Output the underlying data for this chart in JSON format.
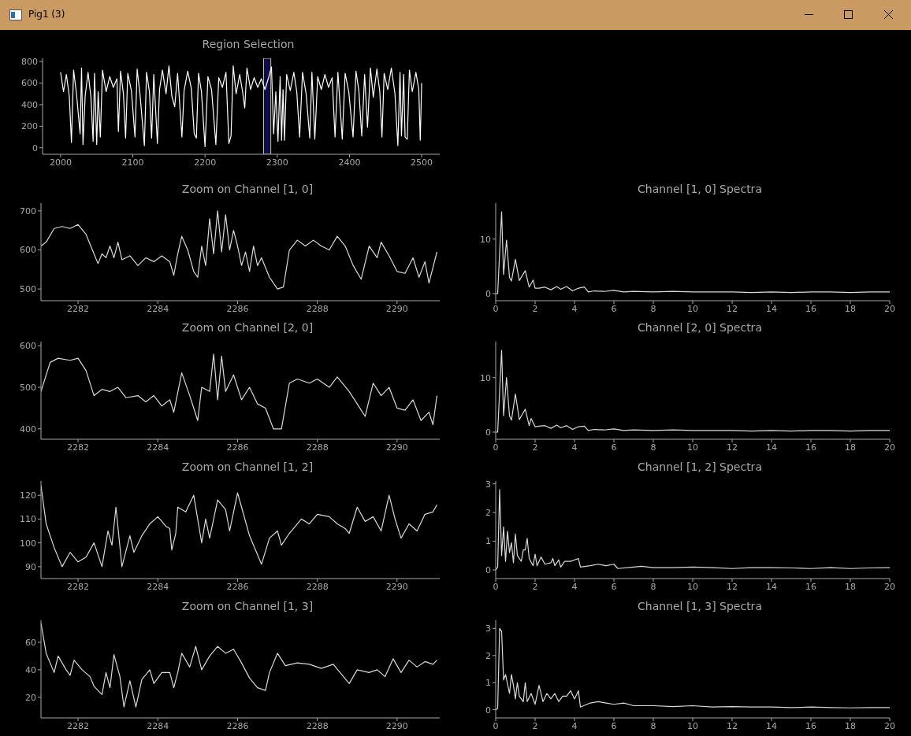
{
  "chart_data": [
    {
      "type": "line",
      "title": "Region Selection",
      "annotations": [
        "Pig1 (3)"
      ],
      "color": "#ffffff",
      "xlim": [
        1975,
        2525
      ],
      "xticks": [
        2000,
        2100,
        2200,
        2300,
        2400,
        2500
      ],
      "ylim": [
        -60,
        830
      ],
      "yticks": [
        0,
        200,
        400,
        600,
        800
      ],
      "bands": [
        {
          "axis": "x",
          "from": 2281.07,
          "to": 2291.07,
          "color": "#0c0c50"
        }
      ],
      "x": [
        2000,
        2004,
        2008,
        2012,
        2015,
        2018,
        2022,
        2027,
        2029,
        2031,
        2034,
        2038,
        2042,
        2045,
        2047,
        2050,
        2052,
        2055,
        2058,
        2063,
        2068,
        2073,
        2078,
        2080,
        2083,
        2087,
        2090,
        2093,
        2098,
        2103,
        2106,
        2110,
        2116,
        2119,
        2123,
        2126,
        2129,
        2134,
        2137,
        2141,
        2146,
        2150,
        2154,
        2158,
        2162,
        2168,
        2171,
        2176,
        2181,
        2185,
        2188,
        2191,
        2195,
        2200,
        2204,
        2209,
        2215,
        2219,
        2224,
        2229,
        2233,
        2236,
        2239,
        2243,
        2248,
        2252,
        2255,
        2258,
        2263,
        2268,
        2273,
        2278,
        2283,
        2288,
        2292,
        2295,
        2298,
        2301,
        2304,
        2306,
        2308,
        2310,
        2313,
        2318,
        2323,
        2327,
        2331,
        2335,
        2340,
        2345,
        2348,
        2352,
        2356,
        2361,
        2366,
        2371,
        2376,
        2380,
        2384,
        2390,
        2394,
        2399,
        2405,
        2409,
        2413,
        2417,
        2421,
        2425,
        2429,
        2433,
        2438,
        2442,
        2445,
        2448,
        2453,
        2458,
        2463,
        2467,
        2470,
        2472,
        2475,
        2477,
        2480,
        2483,
        2487,
        2492,
        2496,
        2498,
        2500
      ],
      "values": [
        700,
        520,
        680,
        480,
        50,
        720,
        500,
        130,
        740,
        30,
        480,
        700,
        470,
        60,
        690,
        30,
        520,
        100,
        720,
        520,
        660,
        560,
        640,
        150,
        710,
        500,
        90,
        690,
        530,
        100,
        730,
        490,
        20,
        700,
        520,
        90,
        680,
        40,
        540,
        720,
        500,
        760,
        480,
        380,
        690,
        100,
        530,
        710,
        550,
        130,
        90,
        690,
        520,
        10,
        660,
        540,
        30,
        650,
        560,
        700,
        40,
        110,
        760,
        500,
        680,
        520,
        370,
        740,
        540,
        650,
        560,
        640,
        540,
        650,
        750,
        130,
        520,
        60,
        660,
        70,
        540,
        70,
        680,
        530,
        700,
        520,
        100,
        700,
        500,
        90,
        700,
        80,
        660,
        540,
        680,
        560,
        650,
        100,
        700,
        80,
        690,
        520,
        100,
        710,
        530,
        110,
        680,
        190,
        740,
        470,
        730,
        520,
        100,
        690,
        540,
        740,
        500,
        20,
        700,
        110,
        680,
        100,
        80,
        720,
        520,
        700,
        540,
        70,
        600
      ]
    },
    {
      "type": "line",
      "title": "Zoom on Channel [1, 0]",
      "color": "#d9d9d9",
      "xlim": [
        2281.07,
        2291.07
      ],
      "xticks": [
        2282,
        2284,
        2286,
        2288,
        2290
      ],
      "ylim": [
        470,
        720
      ],
      "yticks": [
        500,
        600,
        700
      ],
      "x": [
        2281.07,
        2281.2,
        2281.4,
        2281.6,
        2281.8,
        2282.0,
        2282.2,
        2282.4,
        2282.5,
        2282.6,
        2282.7,
        2282.8,
        2282.9,
        2283.0,
        2283.1,
        2283.3,
        2283.5,
        2283.7,
        2283.9,
        2284.1,
        2284.3,
        2284.4,
        2284.5,
        2284.6,
        2284.75,
        2284.9,
        2285.0,
        2285.1,
        2285.2,
        2285.3,
        2285.4,
        2285.5,
        2285.6,
        2285.7,
        2285.8,
        2285.9,
        2286.0,
        2286.1,
        2286.2,
        2286.3,
        2286.4,
        2286.5,
        2286.6,
        2286.8,
        2287.0,
        2287.15,
        2287.3,
        2287.5,
        2287.7,
        2287.9,
        2288.1,
        2288.3,
        2288.5,
        2288.7,
        2288.9,
        2289.1,
        2289.3,
        2289.5,
        2289.6,
        2289.8,
        2290.0,
        2290.2,
        2290.4,
        2290.55,
        2290.7,
        2290.8,
        2291.0
      ],
      "values": [
        610,
        620,
        655,
        660,
        655,
        665,
        640,
        590,
        565,
        590,
        580,
        610,
        580,
        620,
        575,
        585,
        560,
        580,
        570,
        585,
        570,
        535,
        590,
        635,
        600,
        545,
        530,
        610,
        560,
        680,
        590,
        700,
        595,
        690,
        600,
        650,
        610,
        560,
        595,
        545,
        610,
        560,
        580,
        530,
        500,
        505,
        600,
        625,
        610,
        625,
        610,
        600,
        635,
        610,
        560,
        525,
        610,
        580,
        620,
        585,
        545,
        540,
        580,
        530,
        570,
        515,
        595
      ]
    },
    {
      "type": "line",
      "title": "Channel [1, 0] Spectra",
      "color": "#d9d9d9",
      "xlim": [
        0,
        20
      ],
      "xticks": [
        0,
        2,
        4,
        6,
        8,
        10,
        12,
        14,
        16,
        18,
        20
      ],
      "ylim": [
        -1.3,
        16.6
      ],
      "yticks": [
        0,
        10
      ],
      "x": [
        0,
        0.1,
        0.3,
        0.4,
        0.55,
        0.7,
        0.8,
        1.0,
        1.2,
        1.5,
        1.7,
        1.9,
        2.0,
        2.2,
        2.5,
        2.8,
        3.1,
        3.3,
        3.6,
        3.9,
        4.2,
        4.5,
        4.7,
        5,
        5.5,
        6,
        6.5,
        7,
        8,
        9,
        10,
        11,
        12,
        13,
        14,
        15,
        16,
        17,
        18,
        19,
        20
      ],
      "values": [
        0,
        0,
        15,
        3.5,
        9.8,
        3,
        2.3,
        6.3,
        2.4,
        4.2,
        1.2,
        2.5,
        1.0,
        1.0,
        1.2,
        0.7,
        1.3,
        0.8,
        1.3,
        0.5,
        1.0,
        1.2,
        0.3,
        0.5,
        0.4,
        0.6,
        0.3,
        0.4,
        0.3,
        0.4,
        0.3,
        0.3,
        0.3,
        0.2,
        0.3,
        0.2,
        0.3,
        0.3,
        0.2,
        0.3,
        0.3
      ]
    },
    {
      "type": "line",
      "title": "Zoom on Channel [2, 0]",
      "color": "#d9d9d9",
      "xlim": [
        2281.07,
        2291.07
      ],
      "xticks": [
        2282,
        2284,
        2286,
        2288,
        2290
      ],
      "ylim": [
        375,
        610
      ],
      "yticks": [
        400,
        500,
        600
      ],
      "x": [
        2281.07,
        2281.3,
        2281.5,
        2281.8,
        2282.0,
        2282.2,
        2282.4,
        2282.6,
        2282.8,
        2283.0,
        2283.2,
        2283.5,
        2283.7,
        2283.9,
        2284.1,
        2284.3,
        2284.4,
        2284.6,
        2284.8,
        2285.0,
        2285.1,
        2285.3,
        2285.4,
        2285.5,
        2285.6,
        2285.7,
        2285.9,
        2286.1,
        2286.3,
        2286.5,
        2286.7,
        2286.9,
        2287.1,
        2287.3,
        2287.5,
        2287.8,
        2288.0,
        2288.3,
        2288.5,
        2288.8,
        2289.0,
        2289.2,
        2289.4,
        2289.6,
        2289.8,
        2290.0,
        2290.2,
        2290.4,
        2290.6,
        2290.8,
        2290.9,
        2291.0
      ],
      "values": [
        490,
        560,
        570,
        565,
        570,
        540,
        480,
        495,
        490,
        500,
        475,
        480,
        465,
        480,
        455,
        470,
        440,
        535,
        480,
        420,
        500,
        490,
        580,
        470,
        575,
        490,
        530,
        470,
        500,
        460,
        450,
        400,
        400,
        510,
        520,
        510,
        520,
        500,
        525,
        490,
        460,
        430,
        510,
        480,
        500,
        450,
        445,
        470,
        420,
        440,
        410,
        480
      ]
    },
    {
      "type": "line",
      "title": "Channel [2, 0] Spectra",
      "color": "#d9d9d9",
      "xlim": [
        0,
        20
      ],
      "xticks": [
        0,
        2,
        4,
        6,
        8,
        10,
        12,
        14,
        16,
        18,
        20
      ],
      "ylim": [
        -1.3,
        16.6
      ],
      "yticks": [
        0,
        10
      ],
      "x": [
        0,
        0.1,
        0.3,
        0.4,
        0.55,
        0.7,
        0.8,
        1.0,
        1.2,
        1.5,
        1.7,
        1.8,
        2.0,
        2.2,
        2.5,
        2.8,
        3.1,
        3.3,
        3.6,
        3.9,
        4.2,
        4.5,
        4.7,
        5,
        5.5,
        6,
        6.5,
        7,
        8,
        9,
        10,
        11,
        12,
        13,
        14,
        15,
        16,
        17,
        18,
        19,
        20
      ],
      "values": [
        0,
        0,
        15,
        3.0,
        10,
        3,
        2.2,
        7,
        2.3,
        4.2,
        1.2,
        2.5,
        1.0,
        1.1,
        1.2,
        0.7,
        1.3,
        0.8,
        1.2,
        0.5,
        1.0,
        1.1,
        0.3,
        0.5,
        0.4,
        0.6,
        0.3,
        0.4,
        0.3,
        0.4,
        0.3,
        0.3,
        0.3,
        0.2,
        0.3,
        0.2,
        0.3,
        0.3,
        0.2,
        0.3,
        0.3
      ]
    },
    {
      "type": "line",
      "title": "Zoom on Channel [1, 2]",
      "color": "#d9d9d9",
      "xlim": [
        2281.07,
        2291.07
      ],
      "xticks": [
        2282,
        2284,
        2286,
        2288,
        2290
      ],
      "ylim": [
        85,
        126
      ],
      "yticks": [
        90,
        100,
        110,
        120
      ],
      "x": [
        2281.07,
        2281.2,
        2281.4,
        2281.6,
        2281.8,
        2282.0,
        2282.2,
        2282.4,
        2282.6,
        2282.75,
        2282.85,
        2282.95,
        2283.1,
        2283.3,
        2283.4,
        2283.6,
        2283.8,
        2284.0,
        2284.2,
        2284.3,
        2284.35,
        2284.45,
        2284.5,
        2284.7,
        2284.9,
        2285.1,
        2285.2,
        2285.3,
        2285.5,
        2285.7,
        2285.8,
        2286.0,
        2286.1,
        2286.3,
        2286.6,
        2286.8,
        2287.0,
        2287.1,
        2287.3,
        2287.6,
        2287.8,
        2288.0,
        2288.3,
        2288.5,
        2288.7,
        2288.8,
        2289.0,
        2289.2,
        2289.4,
        2289.6,
        2289.8,
        2289.95,
        2290.1,
        2290.3,
        2290.5,
        2290.7,
        2290.9,
        2291.0
      ],
      "values": [
        124,
        108,
        98,
        90,
        96,
        92,
        94,
        100,
        90,
        105,
        99,
        115,
        90,
        103,
        96,
        103,
        108,
        111,
        107,
        106,
        97,
        104,
        115,
        113,
        120,
        100,
        110,
        102,
        118,
        114,
        105,
        121,
        115,
        103,
        91,
        102,
        105,
        99,
        104,
        110,
        108,
        112,
        111,
        108,
        106,
        104,
        115,
        109,
        111,
        105,
        120,
        110,
        102,
        108,
        105,
        112,
        113,
        116
      ]
    },
    {
      "type": "line",
      "title": "Channel [1, 2] Spectra",
      "color": "#d9d9d9",
      "xlim": [
        0,
        20
      ],
      "xticks": [
        0,
        2,
        4,
        6,
        8,
        10,
        12,
        14,
        16,
        18,
        20
      ],
      "ylim": [
        -0.3,
        3.1
      ],
      "yticks": [
        0,
        1,
        2,
        3
      ],
      "x": [
        0,
        0.1,
        0.2,
        0.3,
        0.4,
        0.5,
        0.6,
        0.7,
        0.8,
        0.9,
        1.0,
        1.1,
        1.3,
        1.4,
        1.5,
        1.6,
        1.7,
        1.9,
        2.0,
        2.1,
        2.3,
        2.5,
        2.8,
        2.9,
        3.0,
        3.2,
        3.3,
        3.5,
        3.8,
        4.2,
        4.3,
        4.8,
        5.2,
        5.6,
        6.0,
        6.2,
        7,
        7.4,
        8,
        9,
        10,
        11,
        12,
        13,
        14,
        15,
        16,
        17,
        18,
        19,
        20
      ],
      "values": [
        0,
        0.1,
        2.8,
        0.5,
        1.5,
        0.3,
        1.35,
        0.6,
        0.95,
        0.25,
        1.25,
        0.5,
        0.3,
        0.7,
        0.7,
        1.1,
        0.4,
        0.15,
        0.55,
        0.15,
        0.45,
        0.2,
        0.25,
        0.4,
        0.15,
        0.35,
        0.1,
        0.3,
        0.3,
        0.4,
        0.1,
        0.15,
        0.2,
        0.15,
        0.2,
        0.05,
        0.1,
        0.13,
        0.08,
        0.08,
        0.1,
        0.08,
        0.05,
        0.08,
        0.08,
        0.07,
        0.05,
        0.08,
        0.05,
        0.07,
        0.08
      ]
    },
    {
      "type": "line",
      "title": "Zoom on Channel [1, 3]",
      "color": "#d9d9d9",
      "xlim": [
        2281.07,
        2291.07
      ],
      "xticks": [
        2282,
        2284,
        2286,
        2288,
        2290
      ],
      "ylim": [
        5,
        76
      ],
      "yticks": [
        20,
        40,
        60
      ],
      "x": [
        2281.07,
        2281.2,
        2281.4,
        2281.5,
        2281.7,
        2281.8,
        2281.9,
        2282.1,
        2282.3,
        2282.4,
        2282.6,
        2282.7,
        2282.8,
        2282.9,
        2283.05,
        2283.15,
        2283.3,
        2283.45,
        2283.6,
        2283.8,
        2283.9,
        2284.1,
        2284.3,
        2284.4,
        2284.5,
        2284.6,
        2284.8,
        2284.95,
        2285.1,
        2285.3,
        2285.5,
        2285.7,
        2285.9,
        2286.1,
        2286.3,
        2286.5,
        2286.7,
        2286.8,
        2287.0,
        2287.2,
        2287.5,
        2287.8,
        2288.1,
        2288.4,
        2288.6,
        2288.8,
        2289.0,
        2289.3,
        2289.5,
        2289.7,
        2289.9,
        2290.1,
        2290.3,
        2290.5,
        2290.7,
        2290.9,
        2291.0
      ],
      "values": [
        74,
        52,
        38,
        50,
        40,
        36,
        47,
        40,
        35,
        28,
        22,
        38,
        27,
        51,
        35,
        13,
        32,
        13,
        33,
        40,
        30,
        38,
        38,
        27,
        38,
        52,
        42,
        57,
        40,
        50,
        57,
        52,
        55,
        45,
        34,
        27,
        25,
        38,
        52,
        43,
        45,
        44,
        41,
        44,
        37,
        30,
        40,
        38,
        40,
        35,
        48,
        38,
        47,
        42,
        46,
        44,
        47
      ]
    },
    {
      "type": "line",
      "title": "Channel [1, 3] Spectra",
      "color": "#d9d9d9",
      "xlim": [
        0,
        20
      ],
      "xticks": [
        0,
        2,
        4,
        6,
        8,
        10,
        12,
        14,
        16,
        18,
        20
      ],
      "ylim": [
        -0.3,
        3.3
      ],
      "yticks": [
        0,
        1,
        2,
        3
      ],
      "x": [
        0,
        0.1,
        0.2,
        0.3,
        0.4,
        0.5,
        0.7,
        0.8,
        0.9,
        1.0,
        1.1,
        1.2,
        1.4,
        1.5,
        1.6,
        1.8,
        2.0,
        2.2,
        2.4,
        2.6,
        2.8,
        3.0,
        3.2,
        3.4,
        3.6,
        3.8,
        4.0,
        4.2,
        4.3,
        4.8,
        5.2,
        5.6,
        6,
        6.5,
        7,
        8,
        9,
        10,
        11,
        12,
        13,
        14,
        15,
        16,
        17,
        18,
        19,
        20
      ],
      "values": [
        0,
        0.05,
        3.0,
        2.9,
        1.1,
        1.3,
        0.6,
        1.3,
        0.9,
        0.4,
        1.0,
        0.5,
        0.3,
        1.0,
        0.3,
        0.6,
        0.2,
        0.9,
        0.3,
        0.6,
        0.4,
        0.6,
        0.3,
        0.5,
        0.5,
        0.7,
        0.4,
        0.7,
        0.1,
        0.25,
        0.3,
        0.25,
        0.2,
        0.25,
        0.15,
        0.15,
        0.12,
        0.15,
        0.1,
        0.12,
        0.1,
        0.1,
        0.08,
        0.1,
        0.08,
        0.07,
        0.08,
        0.08
      ]
    }
  ]
}
